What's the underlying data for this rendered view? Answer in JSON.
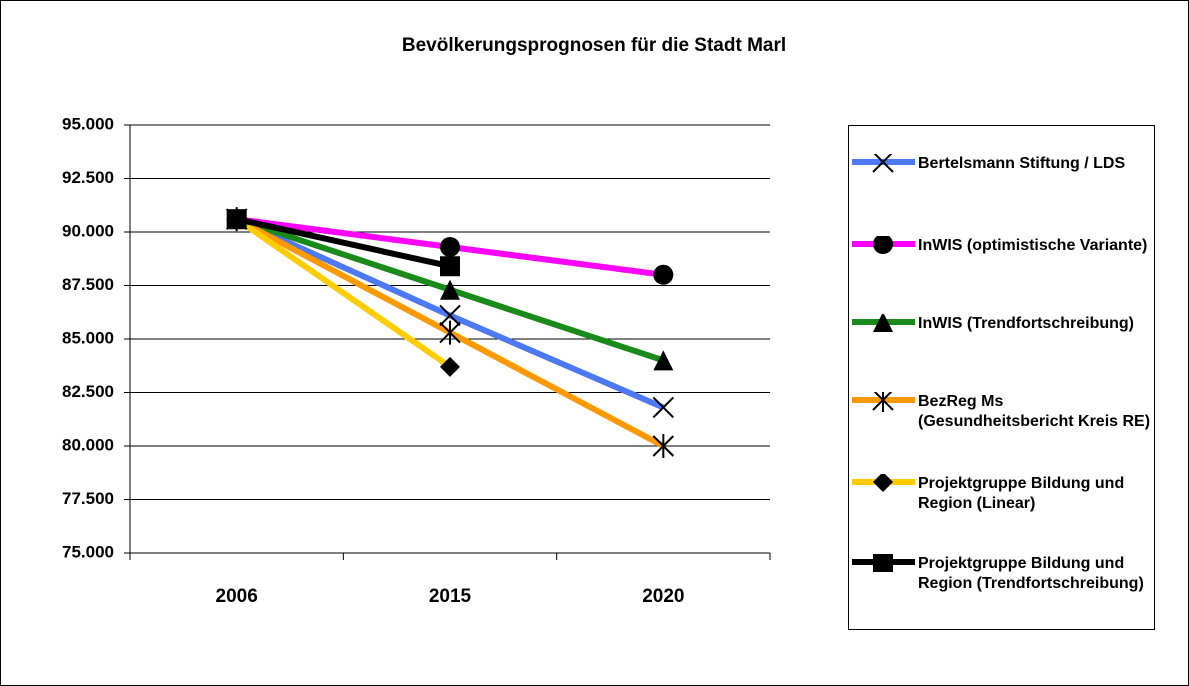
{
  "chart_data": {
    "type": "line",
    "title": "Bevölkerungsprognosen für die Stadt Marl",
    "categories": [
      "2006",
      "2015",
      "2020"
    ],
    "ylim": [
      75000,
      95000
    ],
    "yticks": [
      {
        "value": 75000,
        "label": "75.000"
      },
      {
        "value": 77500,
        "label": "77.500"
      },
      {
        "value": 80000,
        "label": "80.000"
      },
      {
        "value": 82500,
        "label": "82.500"
      },
      {
        "value": 85000,
        "label": "85.000"
      },
      {
        "value": 87500,
        "label": "87.500"
      },
      {
        "value": 90000,
        "label": "90.000"
      },
      {
        "value": 92500,
        "label": "92.500"
      },
      {
        "value": 95000,
        "label": "95.000"
      }
    ],
    "grid": true,
    "legend": "right",
    "series": [
      {
        "name": "Bertelsmann Stiftung / LDS",
        "color": "#4d79f5",
        "marker": "x",
        "values": [
          90600,
          86100,
          81800
        ]
      },
      {
        "name": "InWIS (optimistische Variante)",
        "color": "#ff00ff",
        "marker": "circle",
        "values": [
          90600,
          89300,
          88000
        ]
      },
      {
        "name": "InWIS (Trendfortschreibung)",
        "color": "#1a8a1a",
        "marker": "triangle",
        "values": [
          90600,
          87300,
          84000
        ]
      },
      {
        "name": "BezReg Ms (Gesundheitsbericht Kreis RE)",
        "color": "#ff9900",
        "marker": "star",
        "values": [
          90600,
          85300,
          80000
        ]
      },
      {
        "name": "Projektgruppe Bildung und Region (Linear)",
        "color": "#ffcc00",
        "marker": "diamond",
        "values": [
          90600,
          83700,
          null
        ]
      },
      {
        "name": "Projektgruppe Bildung und Region (Trendfortschreibung)",
        "color": "#000000",
        "marker": "square",
        "values": [
          90600,
          88400,
          null
        ]
      }
    ]
  }
}
